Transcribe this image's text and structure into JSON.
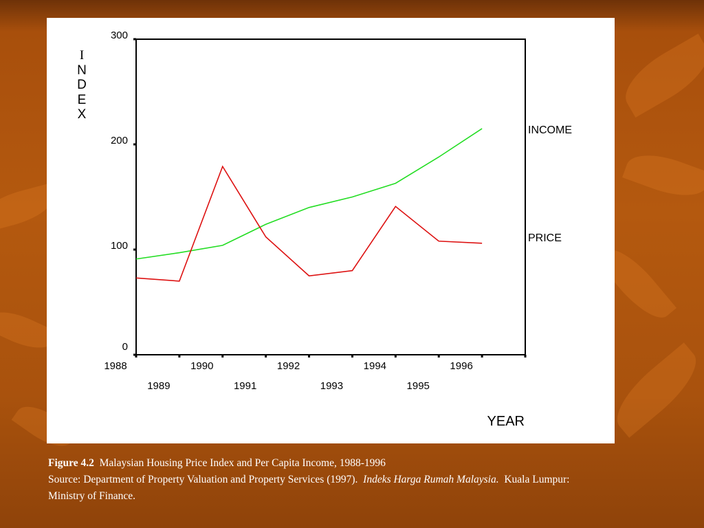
{
  "chart_data": {
    "type": "line",
    "ylabel": "INDEX",
    "xlabel": "YEAR",
    "x": [
      1988,
      1989,
      1990,
      1991,
      1992,
      1993,
      1994,
      1995,
      1996
    ],
    "ylim": [
      0,
      300
    ],
    "xlim": [
      1988,
      1997
    ],
    "yticks": [
      "0",
      "100",
      "200",
      "300"
    ],
    "xticks_upper": [
      "1988",
      "1990",
      "1992",
      "1994",
      "1996"
    ],
    "xticks_lower": [
      "1989",
      "1991",
      "1993",
      "1995"
    ],
    "series": [
      {
        "name": "INCOME",
        "color": "#22dd22",
        "values": [
          91,
          97,
          104,
          124,
          140,
          150,
          163,
          188,
          215
        ]
      },
      {
        "name": "PRICE",
        "color": "#dd1111",
        "values": [
          73,
          70,
          179,
          112,
          75,
          80,
          141,
          108,
          106
        ]
      }
    ],
    "grid": false
  },
  "caption": {
    "figure_label": "Figure 4.2",
    "title": "Malaysian Housing Price Index and Per Capita Income, 1988-1996",
    "source_prefix": "Source:  Department of Property Valuation and Property Services (1997).",
    "source_italic": "Indeks Harga Rumah Malaysia.",
    "source_suffix": "Kuala Lumpur:  Ministry of Finance."
  }
}
